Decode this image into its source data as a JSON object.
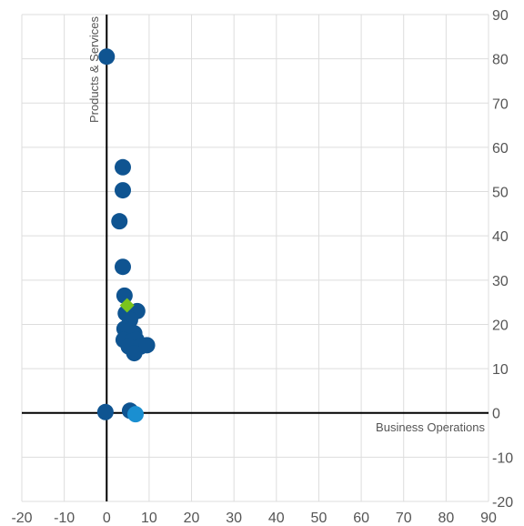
{
  "chart_data": {
    "type": "scatter",
    "title": "",
    "xlabel": "Business Operations",
    "ylabel": "Products & Services",
    "xlim": [
      -20,
      90
    ],
    "ylim": [
      -20,
      90
    ],
    "xticks": [
      -20,
      -10,
      0,
      10,
      20,
      30,
      40,
      50,
      60,
      70,
      80,
      90
    ],
    "yticks": [
      -20,
      -10,
      0,
      10,
      20,
      30,
      40,
      50,
      60,
      70,
      80,
      90
    ],
    "grid": true,
    "legend": "none",
    "series": [
      {
        "color": "#0f5491",
        "marker": "circle",
        "points": [
          {
            "x": 0,
            "y": 80.5
          },
          {
            "x": 3.8,
            "y": 55.5
          },
          {
            "x": 3.8,
            "y": 50.3
          },
          {
            "x": 3,
            "y": 43.3
          },
          {
            "x": 3.8,
            "y": 33
          },
          {
            "x": 4.2,
            "y": 26.5
          },
          {
            "x": 7.2,
            "y": 23
          },
          {
            "x": 4.5,
            "y": 22.5
          },
          {
            "x": 5.5,
            "y": 21
          },
          {
            "x": 4.2,
            "y": 19
          },
          {
            "x": 5.2,
            "y": 18.5
          },
          {
            "x": 6.5,
            "y": 18
          },
          {
            "x": 4,
            "y": 16.5
          },
          {
            "x": 5.5,
            "y": 16
          },
          {
            "x": 7,
            "y": 16.5
          },
          {
            "x": 5.2,
            "y": 15
          },
          {
            "x": 8,
            "y": 15
          },
          {
            "x": 9.5,
            "y": 15.3
          },
          {
            "x": 6.5,
            "y": 13.5
          },
          {
            "x": 5.5,
            "y": 0.5
          },
          {
            "x": -0.3,
            "y": 0.2
          }
        ]
      },
      {
        "color": "#1a8fd1",
        "marker": "circle",
        "points": [
          {
            "x": 6.8,
            "y": -0.3
          }
        ]
      },
      {
        "color": "#7ac41d",
        "marker": "diamond",
        "points": [
          {
            "x": 4.8,
            "y": 24.3
          }
        ]
      }
    ]
  }
}
